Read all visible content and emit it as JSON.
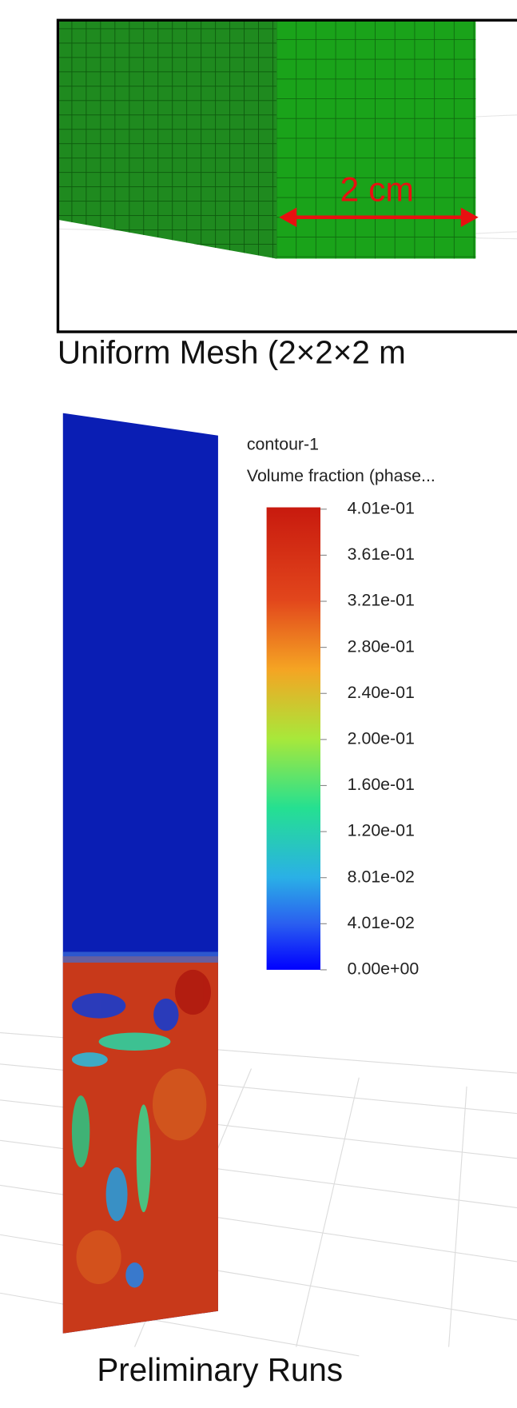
{
  "top_panel": {
    "dimension_label": "2 cm",
    "caption": "Uniform Mesh (2×2×2 m"
  },
  "bottom_panel": {
    "legend_title": "contour-1",
    "legend_subtitle": "Volume fraction (phase...",
    "legend_labels": [
      "4.01e-01",
      "3.61e-01",
      "3.21e-01",
      "2.80e-01",
      "2.40e-01",
      "2.00e-01",
      "1.60e-01",
      "1.20e-01",
      "8.01e-02",
      "4.01e-02",
      "0.00e+00"
    ],
    "caption": "Preliminary Runs"
  }
}
